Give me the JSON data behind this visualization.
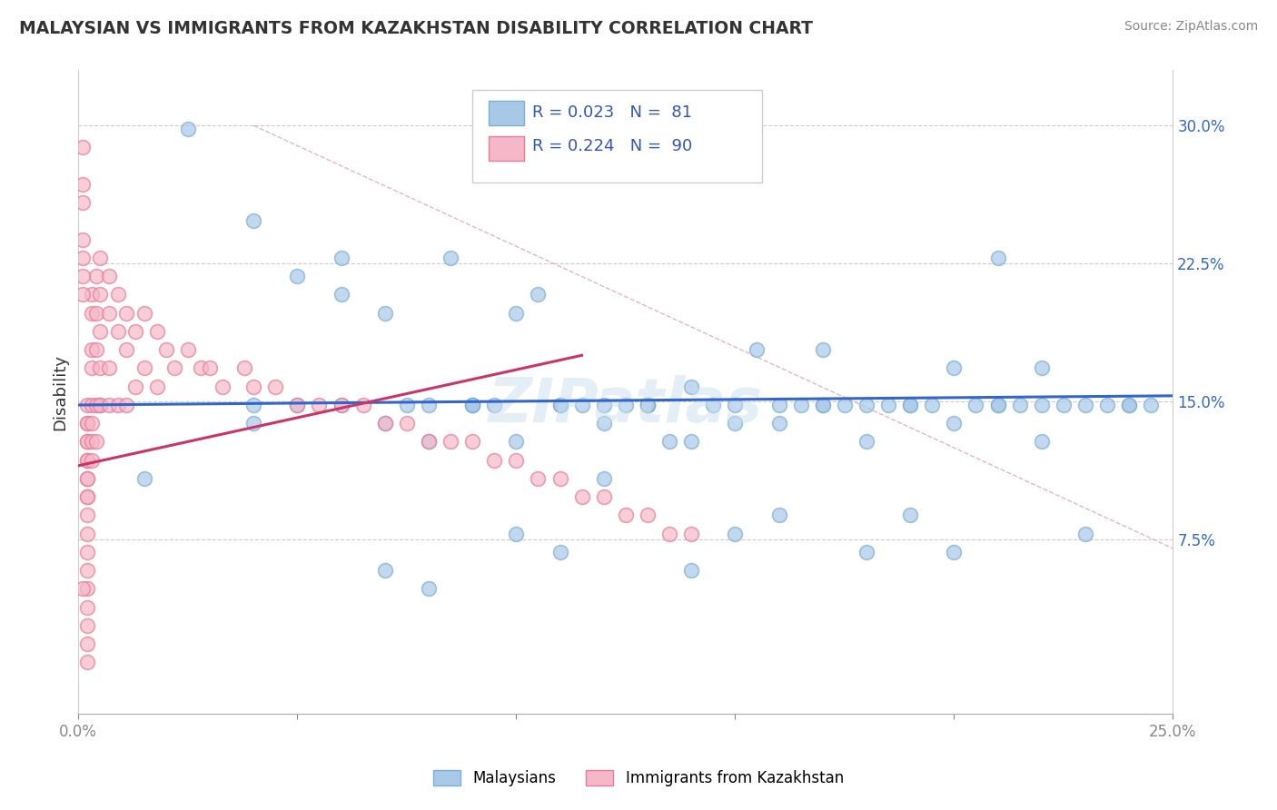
{
  "title": "MALAYSIAN VS IMMIGRANTS FROM KAZAKHSTAN DISABILITY CORRELATION CHART",
  "source": "Source: ZipAtlas.com",
  "xlim": [
    0.0,
    0.25
  ],
  "ylim": [
    -0.02,
    0.33
  ],
  "blue_color": "#a8c8e8",
  "blue_edge_color": "#7bafd4",
  "pink_color": "#f5b8c8",
  "pink_edge_color": "#e87a9a",
  "blue_line_color": "#3366cc",
  "pink_line_color": "#cc3366",
  "diag_line_color": "#e8a0b0",
  "legend_text_color": "#3355bb",
  "ytick_color": "#3366cc",
  "watermark_color": "#c8dff0",
  "blue_trend_x": [
    0.0,
    0.25
  ],
  "blue_trend_y": [
    0.148,
    0.153
  ],
  "pink_trend_x_start": 0.0,
  "pink_trend_x_end": 0.115,
  "pink_trend_y_start": 0.115,
  "pink_trend_y_end": 0.175,
  "diag_line_x": [
    0.04,
    0.25
  ],
  "diag_line_y": [
    0.3,
    0.07
  ],
  "blue_x": [
    0.005,
    0.015,
    0.025,
    0.04,
    0.05,
    0.06,
    0.07,
    0.075,
    0.085,
    0.09,
    0.095,
    0.1,
    0.105,
    0.11,
    0.115,
    0.12,
    0.125,
    0.13,
    0.135,
    0.14,
    0.145,
    0.15,
    0.155,
    0.16,
    0.165,
    0.17,
    0.175,
    0.18,
    0.185,
    0.19,
    0.195,
    0.2,
    0.205,
    0.21,
    0.215,
    0.22,
    0.225,
    0.23,
    0.235,
    0.24,
    0.245,
    0.06,
    0.08,
    0.09,
    0.11,
    0.13,
    0.15,
    0.17,
    0.19,
    0.21,
    0.04,
    0.07,
    0.1,
    0.12,
    0.14,
    0.16,
    0.18,
    0.2,
    0.22,
    0.05,
    0.09,
    0.13,
    0.17,
    0.21,
    0.07,
    0.11,
    0.15,
    0.19,
    0.23,
    0.08,
    0.12,
    0.16,
    0.2,
    0.24,
    0.1,
    0.14,
    0.18,
    0.22,
    0.04,
    0.06,
    0.08
  ],
  "blue_y": [
    0.148,
    0.108,
    0.298,
    0.148,
    0.218,
    0.208,
    0.198,
    0.148,
    0.228,
    0.148,
    0.148,
    0.198,
    0.208,
    0.148,
    0.148,
    0.148,
    0.148,
    0.148,
    0.128,
    0.158,
    0.148,
    0.148,
    0.178,
    0.148,
    0.148,
    0.178,
    0.148,
    0.148,
    0.148,
    0.148,
    0.148,
    0.168,
    0.148,
    0.228,
    0.148,
    0.148,
    0.148,
    0.148,
    0.148,
    0.148,
    0.148,
    0.148,
    0.148,
    0.148,
    0.148,
    0.148,
    0.138,
    0.148,
    0.148,
    0.148,
    0.138,
    0.138,
    0.128,
    0.138,
    0.128,
    0.138,
    0.128,
    0.138,
    0.128,
    0.148,
    0.148,
    0.148,
    0.148,
    0.148,
    0.058,
    0.068,
    0.078,
    0.088,
    0.078,
    0.128,
    0.108,
    0.088,
    0.068,
    0.148,
    0.078,
    0.058,
    0.068,
    0.168,
    0.248,
    0.228,
    0.048
  ],
  "pink_x": [
    0.002,
    0.002,
    0.002,
    0.002,
    0.002,
    0.002,
    0.002,
    0.002,
    0.002,
    0.002,
    0.002,
    0.002,
    0.002,
    0.002,
    0.002,
    0.002,
    0.002,
    0.002,
    0.002,
    0.002,
    0.003,
    0.003,
    0.003,
    0.003,
    0.003,
    0.003,
    0.003,
    0.003,
    0.004,
    0.004,
    0.004,
    0.004,
    0.004,
    0.005,
    0.005,
    0.005,
    0.005,
    0.005,
    0.007,
    0.007,
    0.007,
    0.007,
    0.009,
    0.009,
    0.009,
    0.011,
    0.011,
    0.011,
    0.013,
    0.013,
    0.015,
    0.015,
    0.018,
    0.018,
    0.02,
    0.022,
    0.025,
    0.028,
    0.03,
    0.033,
    0.038,
    0.04,
    0.045,
    0.05,
    0.055,
    0.06,
    0.065,
    0.07,
    0.075,
    0.08,
    0.085,
    0.09,
    0.095,
    0.1,
    0.105,
    0.11,
    0.115,
    0.12,
    0.125,
    0.13,
    0.135,
    0.14,
    0.001,
    0.001,
    0.001,
    0.001,
    0.001,
    0.001,
    0.001,
    0.001
  ],
  "pink_y": [
    0.148,
    0.138,
    0.128,
    0.118,
    0.108,
    0.098,
    0.088,
    0.078,
    0.068,
    0.058,
    0.048,
    0.038,
    0.028,
    0.018,
    0.008,
    0.138,
    0.128,
    0.118,
    0.108,
    0.098,
    0.208,
    0.198,
    0.178,
    0.168,
    0.148,
    0.138,
    0.128,
    0.118,
    0.218,
    0.198,
    0.178,
    0.148,
    0.128,
    0.228,
    0.208,
    0.188,
    0.168,
    0.148,
    0.218,
    0.198,
    0.168,
    0.148,
    0.208,
    0.188,
    0.148,
    0.198,
    0.178,
    0.148,
    0.188,
    0.158,
    0.198,
    0.168,
    0.188,
    0.158,
    0.178,
    0.168,
    0.178,
    0.168,
    0.168,
    0.158,
    0.168,
    0.158,
    0.158,
    0.148,
    0.148,
    0.148,
    0.148,
    0.138,
    0.138,
    0.128,
    0.128,
    0.128,
    0.118,
    0.118,
    0.108,
    0.108,
    0.098,
    0.098,
    0.088,
    0.088,
    0.078,
    0.078,
    0.288,
    0.268,
    0.258,
    0.238,
    0.228,
    0.218,
    0.208,
    0.048
  ]
}
